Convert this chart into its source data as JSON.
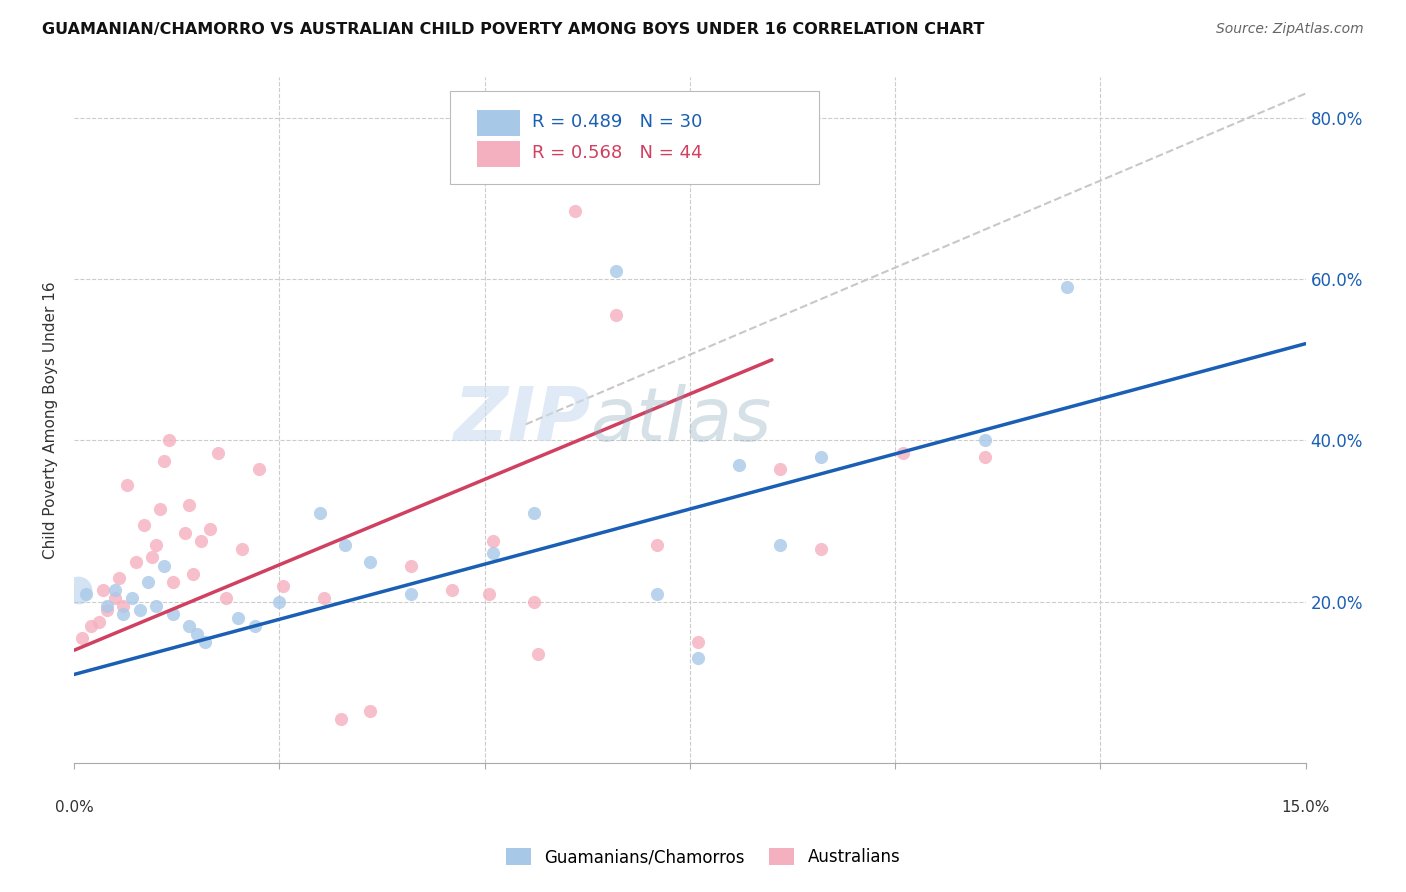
{
  "title": "GUAMANIAN/CHAMORRO VS AUSTRALIAN CHILD POVERTY AMONG BOYS UNDER 16 CORRELATION CHART",
  "source": "Source: ZipAtlas.com",
  "ylabel": "Child Poverty Among Boys Under 16",
  "watermark": "ZIPatlas",
  "xlim": [
    0.0,
    15.0
  ],
  "ylim": [
    0.0,
    85.0
  ],
  "yticks": [
    0.0,
    20.0,
    40.0,
    60.0,
    80.0
  ],
  "blue_color": "#a8c8e8",
  "pink_color": "#f4b0be",
  "blue_line_color": "#1a5fb4",
  "pink_line_color": "#d04060",
  "gray_line_color": "#c8c8c8",
  "blue_scatter": [
    [
      0.15,
      21.0
    ],
    [
      0.4,
      19.5
    ],
    [
      0.5,
      21.5
    ],
    [
      0.6,
      18.5
    ],
    [
      0.7,
      20.5
    ],
    [
      0.8,
      19.0
    ],
    [
      0.9,
      22.5
    ],
    [
      1.0,
      19.5
    ],
    [
      1.1,
      24.5
    ],
    [
      1.2,
      18.5
    ],
    [
      1.4,
      17.0
    ],
    [
      1.5,
      16.0
    ],
    [
      1.6,
      15.0
    ],
    [
      2.0,
      18.0
    ],
    [
      2.2,
      17.0
    ],
    [
      2.5,
      20.0
    ],
    [
      3.0,
      31.0
    ],
    [
      3.3,
      27.0
    ],
    [
      3.6,
      25.0
    ],
    [
      4.1,
      21.0
    ],
    [
      5.1,
      26.0
    ],
    [
      5.6,
      31.0
    ],
    [
      6.6,
      61.0
    ],
    [
      7.1,
      21.0
    ],
    [
      7.6,
      13.0
    ],
    [
      8.1,
      37.0
    ],
    [
      8.6,
      27.0
    ],
    [
      9.1,
      38.0
    ],
    [
      11.1,
      40.0
    ],
    [
      12.1,
      59.0
    ]
  ],
  "pink_scatter": [
    [
      0.1,
      15.5
    ],
    [
      0.2,
      17.0
    ],
    [
      0.3,
      17.5
    ],
    [
      0.35,
      21.5
    ],
    [
      0.4,
      19.0
    ],
    [
      0.5,
      20.5
    ],
    [
      0.55,
      23.0
    ],
    [
      0.6,
      19.5
    ],
    [
      0.65,
      34.5
    ],
    [
      0.75,
      25.0
    ],
    [
      0.85,
      29.5
    ],
    [
      0.95,
      25.5
    ],
    [
      1.0,
      27.0
    ],
    [
      1.05,
      31.5
    ],
    [
      1.1,
      37.5
    ],
    [
      1.15,
      40.0
    ],
    [
      1.2,
      22.5
    ],
    [
      1.35,
      28.5
    ],
    [
      1.4,
      32.0
    ],
    [
      1.45,
      23.5
    ],
    [
      1.55,
      27.5
    ],
    [
      1.65,
      29.0
    ],
    [
      1.75,
      38.5
    ],
    [
      1.85,
      20.5
    ],
    [
      2.05,
      26.5
    ],
    [
      2.25,
      36.5
    ],
    [
      2.55,
      22.0
    ],
    [
      3.05,
      20.5
    ],
    [
      3.25,
      5.5
    ],
    [
      3.6,
      6.5
    ],
    [
      4.1,
      24.5
    ],
    [
      4.6,
      21.5
    ],
    [
      5.05,
      21.0
    ],
    [
      5.1,
      27.5
    ],
    [
      5.6,
      20.0
    ],
    [
      5.65,
      13.5
    ],
    [
      6.1,
      68.5
    ],
    [
      6.6,
      55.5
    ],
    [
      7.1,
      27.0
    ],
    [
      7.6,
      15.0
    ],
    [
      8.6,
      36.5
    ],
    [
      9.1,
      26.5
    ],
    [
      10.1,
      38.5
    ],
    [
      11.1,
      38.0
    ]
  ],
  "blue_large_x": 0.05,
  "blue_large_y": 21.5,
  "blue_large_size": 400,
  "blue_line_x": [
    0.0,
    15.0
  ],
  "blue_line_y": [
    11.0,
    52.0
  ],
  "pink_line_x": [
    0.0,
    8.5
  ],
  "pink_line_y": [
    14.0,
    50.0
  ],
  "diag_line_x": [
    5.5,
    15.0
  ],
  "diag_line_y": [
    42.0,
    83.0
  ]
}
